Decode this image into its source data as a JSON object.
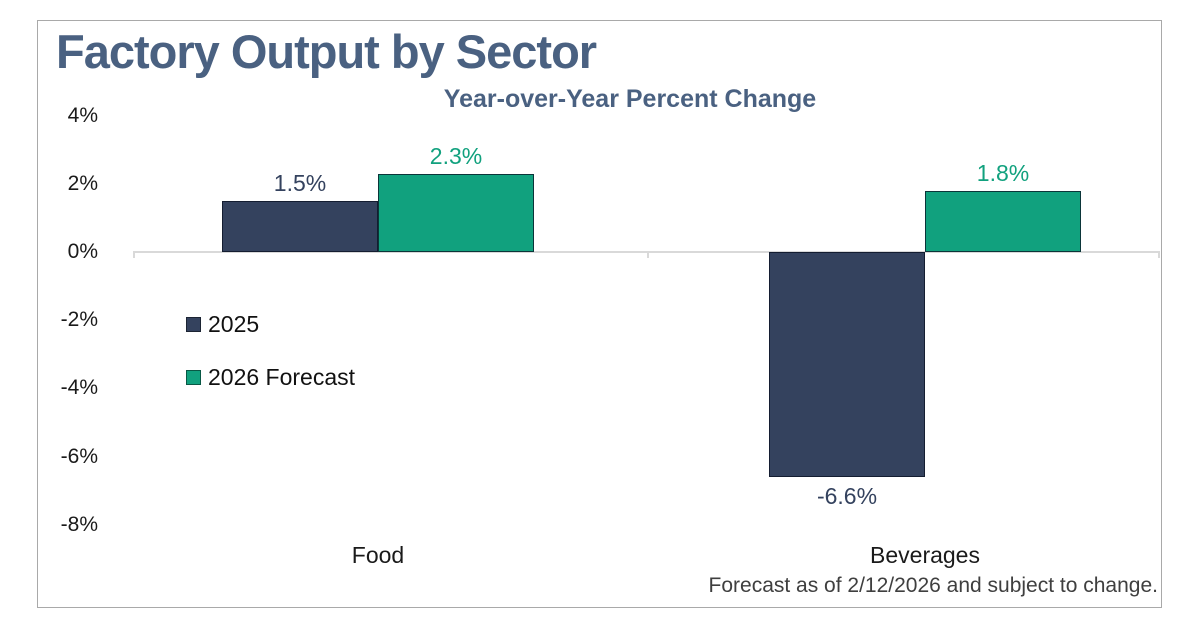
{
  "title": "Factory Output by Sector",
  "subtitle": "Year-over-Year Percent Change",
  "footnote": "Forecast as of 2/12/2026 and subject to change.",
  "colors": {
    "navy": "#34425E",
    "green": "#11A17E",
    "heading": "#4A6181",
    "axis_line": "#D9D9D9",
    "text": "#1A1A1A",
    "footnote": "#3F3F3F"
  },
  "legend": {
    "items": [
      {
        "label": "2025",
        "color": "#34425E"
      },
      {
        "label": "2026 Forecast",
        "color": "#11A17E"
      }
    ]
  },
  "chart_data": {
    "type": "bar",
    "title": "Factory Output by Sector",
    "subtitle": "Year-over-Year Percent Change",
    "categories": [
      "Food",
      "Beverages"
    ],
    "series": [
      {
        "name": "2025",
        "color": "#34425E",
        "values": [
          1.5,
          -6.6
        ],
        "data_labels": [
          "1.5%",
          "-6.6%"
        ]
      },
      {
        "name": "2026 Forecast",
        "color": "#11A17E",
        "values": [
          2.3,
          1.8
        ],
        "data_labels": [
          "2.3%",
          "1.8%"
        ]
      }
    ],
    "xlabel": "",
    "ylabel": "",
    "ylim": [
      -8,
      4
    ],
    "yticks": [
      {
        "value": 4,
        "label": "4%"
      },
      {
        "value": 2,
        "label": "2%"
      },
      {
        "value": 0,
        "label": "0%"
      },
      {
        "value": -2,
        "label": "-2%"
      },
      {
        "value": -4,
        "label": "-4%"
      },
      {
        "value": -6,
        "label": "-6%"
      },
      {
        "value": -8,
        "label": "-8%"
      }
    ],
    "grid": false,
    "legend_position": "inside-middle-left",
    "annotation": "Forecast as of 2/12/2026 and subject to change."
  }
}
